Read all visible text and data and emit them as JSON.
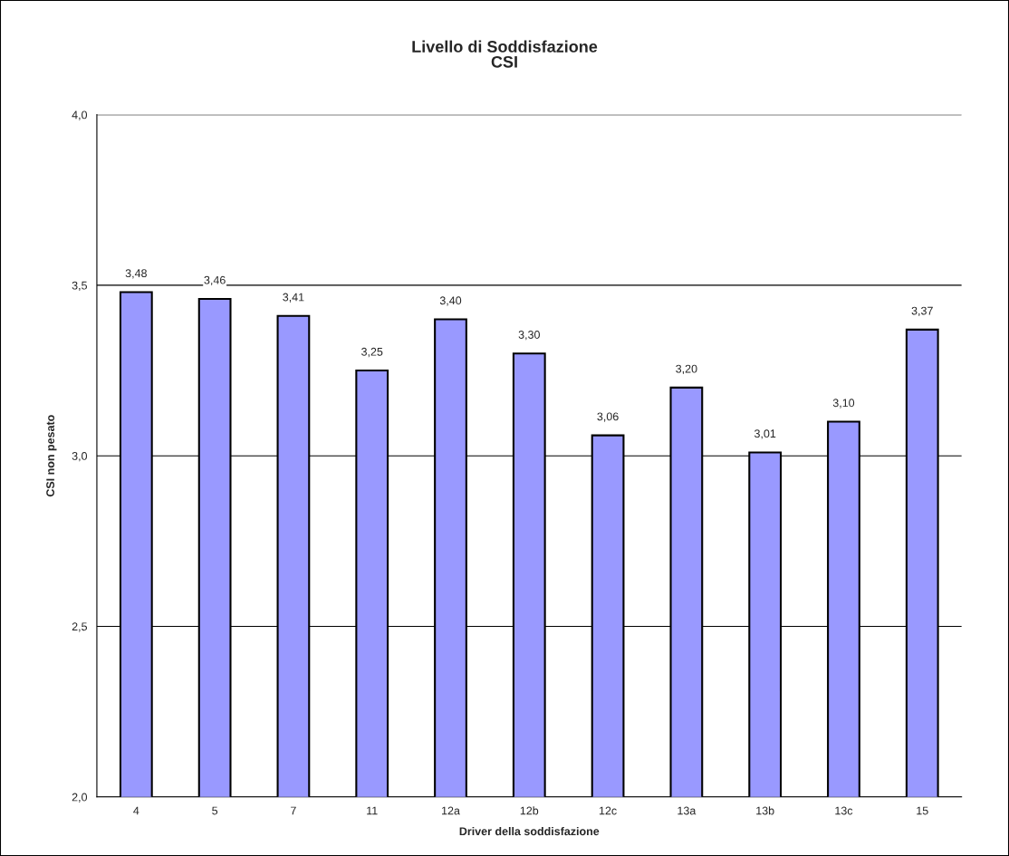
{
  "chart_data": {
    "type": "bar",
    "title": "Livello di Soddisfazione\nCSI",
    "xlabel": "Driver della soddisfazione",
    "ylabel": "CSI non pesato",
    "categories": [
      "4",
      "5",
      "7",
      "11",
      "12a",
      "12b",
      "12c",
      "13a",
      "13b",
      "13c",
      "15"
    ],
    "values": [
      3.48,
      3.46,
      3.41,
      3.25,
      3.4,
      3.3,
      3.06,
      3.2,
      3.01,
      3.1,
      3.37
    ],
    "value_labels": [
      "3,48",
      "3,46",
      "3,41",
      "3,25",
      "3,40",
      "3,30",
      "3,06",
      "3,20",
      "3,01",
      "3,10",
      "3,37"
    ],
    "color": "#9999ff",
    "ylim": [
      2.0,
      4.0
    ],
    "yticks": [
      {
        "value": 2.0,
        "label": "2,0"
      },
      {
        "value": 2.5,
        "label": "2,5"
      },
      {
        "value": 3.0,
        "label": "3,0"
      },
      {
        "value": 3.5,
        "label": "3,5"
      },
      {
        "value": 4.0,
        "label": "4,0"
      }
    ],
    "grid": "y",
    "legend": false
  }
}
